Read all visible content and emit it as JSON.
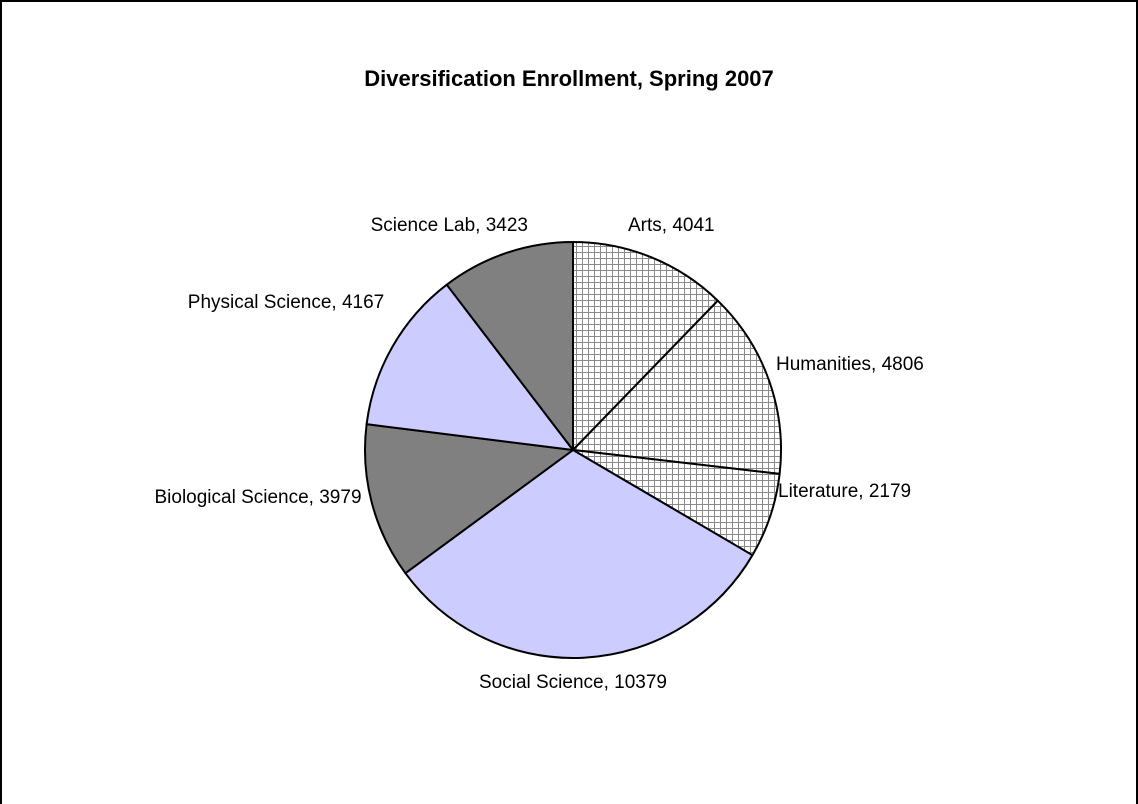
{
  "chart_data": {
    "type": "pie",
    "title": "Diversification Enrollment, Spring 2007",
    "values": [
      4041,
      4806,
      2179,
      10379,
      3979,
      4167,
      3423
    ],
    "value_labels": [
      "Arts, 4041",
      "Humanities, 4806",
      "Literature, 2179",
      "Social Science, 10379",
      "Biological Science, 3979",
      "Physical Science, 4167",
      "Science Lab, 3423"
    ],
    "colors": [
      "#ffffff",
      "#ffffff",
      "#ffffff",
      "#ccccff",
      "#808080",
      "#ccccff",
      "#808080"
    ],
    "hatched": [
      true,
      true,
      true,
      false,
      false,
      false,
      false
    ]
  }
}
